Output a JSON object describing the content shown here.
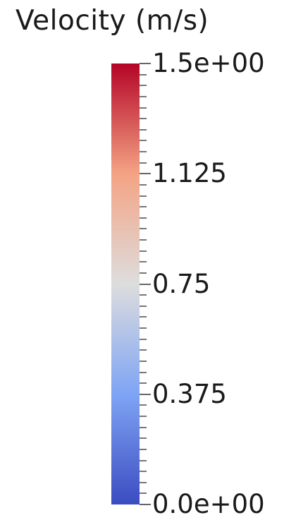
{
  "legend": {
    "title": "Velocity (m/s)",
    "colormap": {
      "name": "cool-to-warm",
      "stops": [
        {
          "value": 0.0,
          "color": "#3b4cc0"
        },
        {
          "value": 0.375,
          "color": "#7fa4f5"
        },
        {
          "value": 0.75,
          "color": "#dddddd"
        },
        {
          "value": 1.125,
          "color": "#f4a384"
        },
        {
          "value": 1.5,
          "color": "#b40426"
        }
      ]
    },
    "range": [
      0.0,
      1.5
    ],
    "minor_ticks_per_interval": 10,
    "labels": [
      {
        "value": 1.5,
        "text": "1.5e+00"
      },
      {
        "value": 1.125,
        "text": "1.125"
      },
      {
        "value": 0.75,
        "text": "0.75"
      },
      {
        "value": 0.375,
        "text": "0.375"
      },
      {
        "value": 0.0,
        "text": "0.0e+00"
      }
    ]
  }
}
